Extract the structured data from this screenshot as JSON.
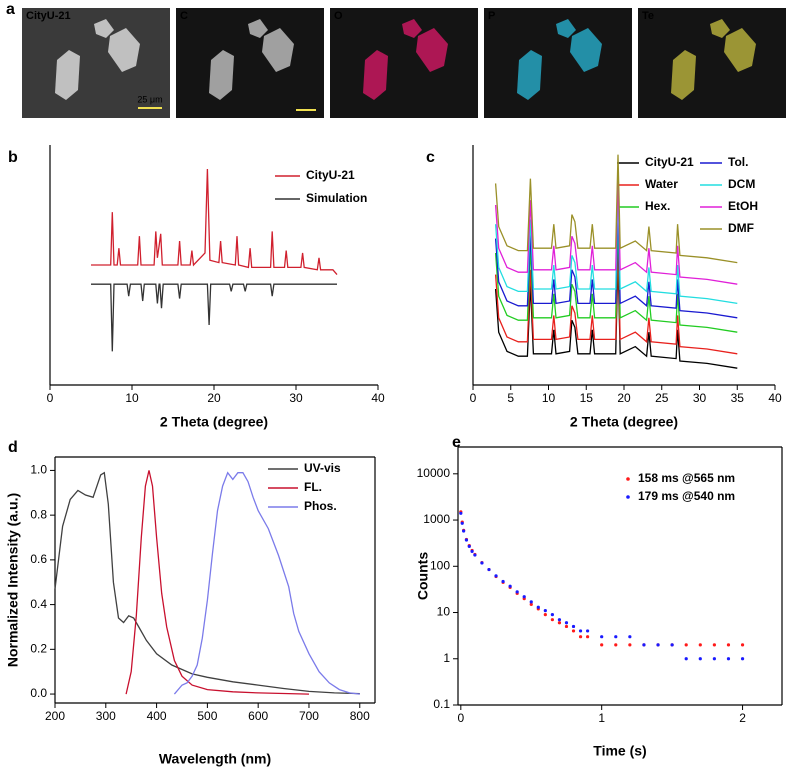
{
  "panel_a": {
    "panel": "a",
    "tiles": [
      "CityU-21",
      "C",
      "O",
      "P",
      "Te"
    ],
    "scale_bar": "25 μm"
  },
  "chart_data": [
    {
      "type": "line",
      "panel": "b",
      "x_label": "2 Theta (degree)",
      "xlim": [
        0,
        40
      ],
      "xticks": [
        0,
        10,
        20,
        30,
        40
      ],
      "ylim": [
        0,
        100
      ],
      "series": [
        {
          "name": "CityU-21",
          "color": "#d0202e",
          "x": [
            5,
            7.4,
            7.6,
            7.8,
            8.2,
            8.4,
            8.6,
            10.7,
            10.9,
            11.1,
            12.7,
            12.9,
            13.1,
            13.3,
            13.5,
            13.7,
            15.6,
            15.8,
            16,
            17.1,
            17.3,
            17.5,
            18.9,
            19.2,
            19.5,
            20.6,
            20.8,
            21,
            22.6,
            22.8,
            23,
            24.2,
            24.4,
            24.6,
            26.9,
            27.1,
            27.3,
            28.6,
            28.8,
            29,
            30.6,
            30.8,
            31,
            32.6,
            32.8,
            33,
            34.5,
            35
          ],
          "values": [
            50,
            50,
            72,
            50,
            50,
            57,
            50,
            50,
            62,
            50,
            50,
            64,
            53,
            58,
            63,
            50,
            50,
            60,
            50,
            50,
            56,
            50,
            55,
            90,
            52,
            51,
            60,
            51,
            50,
            62,
            50,
            49,
            57,
            49,
            49,
            64,
            49,
            49,
            56,
            49,
            49,
            55,
            49,
            48,
            53,
            48,
            48,
            46
          ]
        },
        {
          "name": "Simulation",
          "color": "#333333",
          "x": [
            5,
            7.4,
            7.6,
            7.8,
            9.4,
            9.6,
            9.8,
            11.1,
            11.3,
            11.5,
            12.9,
            13.1,
            13.3,
            13.4,
            13.6,
            13.8,
            15.6,
            15.8,
            16,
            19.2,
            19.4,
            19.6,
            21.9,
            22.1,
            22.3,
            23.6,
            23.8,
            24,
            26.9,
            27.1,
            27.3,
            35
          ],
          "values": [
            42,
            42,
            14,
            42,
            42,
            37,
            42,
            42,
            35,
            42,
            42,
            34,
            42,
            42,
            32,
            42,
            42,
            36,
            42,
            42,
            25,
            42,
            42,
            39,
            42,
            42,
            39,
            42,
            42,
            37,
            42,
            42
          ]
        }
      ]
    },
    {
      "type": "line",
      "panel": "c",
      "x_label": "2 Theta (degree)",
      "xlim": [
        0,
        40
      ],
      "xticks": [
        0,
        5,
        10,
        15,
        20,
        25,
        30,
        35,
        40
      ],
      "ylim": [
        0,
        100
      ],
      "x": [
        3,
        3.4,
        4.5,
        6,
        7.2,
        7.6,
        8,
        10.4,
        10.7,
        11,
        12.8,
        13.1,
        13.5,
        13.9,
        15.5,
        15.8,
        16.1,
        18.9,
        19.2,
        19.5,
        21.5,
        23,
        23.3,
        23.6,
        26.9,
        27.1,
        27.4,
        31,
        35
      ],
      "series": [
        {
          "name": "CityU-21",
          "color": "#000000",
          "values": [
            40,
            22,
            14,
            12,
            12,
            42,
            13,
            13,
            23,
            13,
            14,
            27,
            24,
            13,
            13,
            23,
            13,
            13,
            52,
            13,
            16,
            12,
            22,
            12,
            11,
            23,
            10,
            9,
            7
          ]
        },
        {
          "name": "Water",
          "color": "#e8211d",
          "values": [
            46,
            28,
            20,
            18,
            18,
            48,
            19,
            19,
            29,
            19,
            20,
            33,
            30,
            19,
            19,
            29,
            19,
            19,
            58,
            19,
            22,
            18,
            28,
            18,
            17,
            29,
            16,
            15,
            13
          ]
        },
        {
          "name": "Hex.",
          "color": "#22cc22",
          "values": [
            55,
            37,
            29,
            27,
            27,
            57,
            28,
            28,
            38,
            28,
            29,
            42,
            39,
            28,
            28,
            38,
            28,
            28,
            67,
            28,
            31,
            27,
            37,
            27,
            26,
            38,
            25,
            24,
            22
          ]
        },
        {
          "name": "Tol.",
          "color": "#1a1ad0",
          "values": [
            61,
            43,
            35,
            33,
            33,
            63,
            34,
            34,
            44,
            34,
            35,
            48,
            45,
            34,
            34,
            44,
            34,
            34,
            73,
            34,
            37,
            33,
            43,
            33,
            32,
            44,
            31,
            30,
            28
          ]
        },
        {
          "name": "DCM",
          "color": "#22dde0",
          "values": [
            67,
            49,
            41,
            39,
            39,
            69,
            40,
            40,
            50,
            40,
            41,
            54,
            51,
            40,
            40,
            50,
            40,
            40,
            79,
            40,
            43,
            39,
            49,
            39,
            38,
            50,
            37,
            36,
            34
          ]
        },
        {
          "name": "EtOH",
          "color": "#e020d8",
          "values": [
            75,
            57,
            49,
            47,
            47,
            77,
            48,
            48,
            58,
            48,
            49,
            62,
            59,
            48,
            48,
            58,
            48,
            48,
            87,
            48,
            51,
            47,
            57,
            47,
            46,
            58,
            45,
            44,
            42
          ]
        },
        {
          "name": "DMF",
          "color": "#9a9028",
          "values": [
            84,
            66,
            58,
            56,
            56,
            86,
            57,
            57,
            67,
            57,
            58,
            71,
            68,
            57,
            57,
            67,
            57,
            57,
            96,
            57,
            60,
            56,
            66,
            56,
            55,
            67,
            54,
            53,
            51
          ]
        }
      ]
    },
    {
      "type": "line",
      "panel": "d",
      "x_label": "Wavelength (nm)",
      "y_label": "Normalized Intensity (a.u.)",
      "xlim": [
        200,
        830
      ],
      "xticks": [
        200,
        300,
        400,
        500,
        600,
        700,
        800
      ],
      "ylim": [
        -0.04,
        1.06
      ],
      "yticks": [
        {
          "value": 0,
          "label": "0.0"
        },
        {
          "value": 0.2,
          "label": "0.2"
        },
        {
          "value": 0.4,
          "label": "0.4"
        },
        {
          "value": 0.6,
          "label": "0.6"
        },
        {
          "value": 0.8,
          "label": "0.8"
        },
        {
          "value": 1,
          "label": "1.0"
        }
      ],
      "series": [
        {
          "name": "UV-vis",
          "color": "#404040",
          "x": [
            200,
            215,
            230,
            245,
            260,
            275,
            290,
            297,
            305,
            315,
            325,
            335,
            345,
            355,
            365,
            380,
            400,
            430,
            470,
            500,
            550,
            600,
            650,
            700,
            750,
            800
          ],
          "values": [
            0.47,
            0.75,
            0.87,
            0.91,
            0.89,
            0.88,
            0.98,
            0.99,
            0.85,
            0.5,
            0.34,
            0.32,
            0.35,
            0.34,
            0.3,
            0.24,
            0.18,
            0.13,
            0.09,
            0.075,
            0.055,
            0.04,
            0.025,
            0.012,
            0.005,
            0.002
          ]
        },
        {
          "name": "FL.",
          "color": "#c8102e",
          "x": [
            340,
            350,
            360,
            370,
            378,
            385,
            392,
            400,
            410,
            420,
            435,
            450,
            470,
            500,
            550,
            600,
            700
          ],
          "values": [
            0,
            0.1,
            0.35,
            0.7,
            0.93,
            1,
            0.93,
            0.7,
            0.45,
            0.3,
            0.15,
            0.08,
            0.04,
            0.02,
            0.01,
            0.005,
            0
          ]
        },
        {
          "name": "Phos.",
          "color": "#7b7bea",
          "x": [
            435,
            450,
            460,
            470,
            480,
            490,
            500,
            510,
            520,
            530,
            540,
            550,
            560,
            570,
            580,
            590,
            600,
            620,
            640,
            660,
            670,
            680,
            700,
            720,
            740,
            760,
            780,
            800
          ],
          "values": [
            0,
            0.04,
            0.05,
            0.08,
            0.13,
            0.25,
            0.42,
            0.63,
            0.82,
            0.93,
            0.99,
            0.96,
            0.99,
            0.99,
            0.95,
            0.88,
            0.82,
            0.74,
            0.62,
            0.48,
            0.36,
            0.28,
            0.18,
            0.1,
            0.05,
            0.02,
            0.005,
            0
          ]
        }
      ]
    },
    {
      "type": "scatter",
      "panel": "e",
      "x_label": "Time (s)",
      "y_label": "Counts",
      "log_y": true,
      "xlim": [
        -0.02,
        2.28
      ],
      "xticks": [
        0,
        1,
        2
      ],
      "ylim": [
        0.1,
        38000
      ],
      "yticks": [
        0.1,
        1,
        10,
        100,
        1000,
        10000
      ],
      "series": [
        {
          "name": "158 ms @565 nm",
          "color": "#ff1a1a",
          "x": [
            0,
            0.01,
            0.02,
            0.04,
            0.06,
            0.08,
            0.1,
            0.15,
            0.2,
            0.25,
            0.3,
            0.35,
            0.4,
            0.45,
            0.5,
            0.55,
            0.6,
            0.65,
            0.7,
            0.75,
            0.8,
            0.85,
            0.9,
            1.0,
            1.1,
            1.2,
            1.3,
            1.4,
            1.5,
            1.6,
            1.7,
            1.8,
            1.9,
            2.0
          ],
          "values": [
            1500,
            900,
            600,
            380,
            280,
            220,
            180,
            120,
            85,
            60,
            45,
            35,
            26,
            20,
            15,
            12,
            9,
            7,
            6,
            5,
            4,
            3,
            3,
            2,
            2,
            2,
            2,
            2,
            2,
            2,
            2,
            2,
            2,
            2
          ]
        },
        {
          "name": "179 ms @540 nm",
          "color": "#1a1aff",
          "x": [
            0,
            0.01,
            0.02,
            0.04,
            0.06,
            0.08,
            0.1,
            0.15,
            0.2,
            0.25,
            0.3,
            0.35,
            0.4,
            0.45,
            0.5,
            0.55,
            0.6,
            0.65,
            0.7,
            0.75,
            0.8,
            0.85,
            0.9,
            1.0,
            1.1,
            1.2,
            1.3,
            1.4,
            1.5,
            1.6,
            1.7,
            1.8,
            1.9,
            2.0
          ],
          "values": [
            1400,
            850,
            580,
            370,
            270,
            210,
            175,
            118,
            85,
            62,
            47,
            37,
            28,
            22,
            17,
            13,
            11,
            9,
            7,
            6,
            5,
            4,
            4,
            3,
            3,
            3,
            2,
            2,
            2,
            1,
            1,
            1,
            1,
            1
          ]
        }
      ]
    }
  ]
}
